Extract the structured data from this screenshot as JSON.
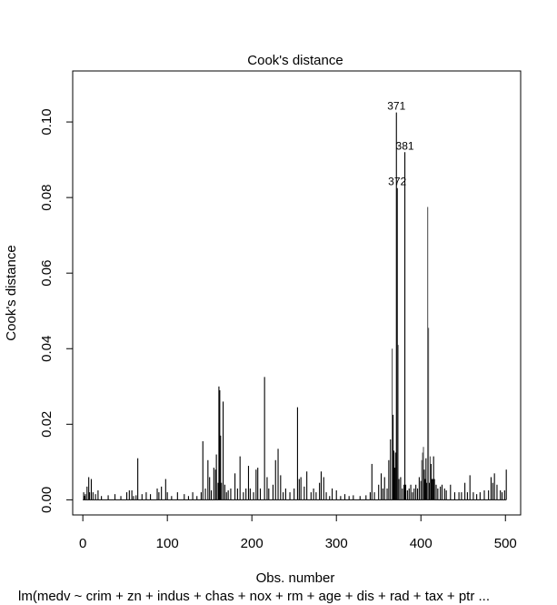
{
  "chart_data": {
    "type": "bar",
    "title": "Cook's distance",
    "xlabel": "Obs. number",
    "ylabel": "Cook's distance",
    "caption": "lm(medv ~ crim + zn + indus + chas + nox + rm + age + dis + rad + tax + ptr ...",
    "xlim": [
      -12,
      518
    ],
    "ylim": [
      -0.004,
      0.1135
    ],
    "xticks": [
      0,
      100,
      200,
      300,
      400,
      500
    ],
    "xtick_labels": [
      "0",
      "100",
      "200",
      "300",
      "400",
      "500"
    ],
    "yticks": [
      0.0,
      0.02,
      0.04,
      0.06,
      0.08,
      0.1
    ],
    "ytick_labels": [
      "0.00",
      "0.02",
      "0.04",
      "0.06",
      "0.08",
      "0.10"
    ],
    "grid": false,
    "bar_color": "#000000",
    "highlight_color": "#555555",
    "baseline": 0.0005,
    "spikes": [
      [
        1,
        0.002
      ],
      [
        2,
        0.001
      ],
      [
        3,
        0.0015
      ],
      [
        5,
        0.0035
      ],
      [
        7,
        0.006
      ],
      [
        8,
        0.002
      ],
      [
        10,
        0.0055
      ],
      [
        12,
        0.002
      ],
      [
        15,
        0.0015
      ],
      [
        18,
        0.0025
      ],
      [
        22,
        0.001
      ],
      [
        30,
        0.0012
      ],
      [
        38,
        0.0015
      ],
      [
        45,
        0.001
      ],
      [
        52,
        0.002
      ],
      [
        55,
        0.0025
      ],
      [
        58,
        0.0025
      ],
      [
        60,
        0.001
      ],
      [
        63,
        0.0012
      ],
      [
        65,
        0.011
      ],
      [
        70,
        0.0015
      ],
      [
        75,
        0.002
      ],
      [
        80,
        0.0015
      ],
      [
        88,
        0.003
      ],
      [
        90,
        0.002
      ],
      [
        93,
        0.0035
      ],
      [
        98,
        0.0055
      ],
      [
        100,
        0.002
      ],
      [
        105,
        0.001
      ],
      [
        112,
        0.002
      ],
      [
        120,
        0.0015
      ],
      [
        125,
        0.001
      ],
      [
        130,
        0.002
      ],
      [
        135,
        0.001
      ],
      [
        140,
        0.002
      ],
      [
        142,
        0.0155
      ],
      [
        145,
        0.003
      ],
      [
        148,
        0.0105
      ],
      [
        150,
        0.006
      ],
      [
        152,
        0.0025
      ],
      [
        155,
        0.0085
      ],
      [
        157,
        0.008
      ],
      [
        158,
        0.012
      ],
      [
        160,
        0.0045
      ],
      [
        161,
        0.03
      ],
      [
        162,
        0.029
      ],
      [
        163,
        0.017
      ],
      [
        164,
        0.0045
      ],
      [
        166,
        0.026
      ],
      [
        168,
        0.004
      ],
      [
        170,
        0.002
      ],
      [
        172,
        0.0025
      ],
      [
        175,
        0.003
      ],
      [
        180,
        0.007
      ],
      [
        183,
        0.003
      ],
      [
        186,
        0.0115
      ],
      [
        190,
        0.002
      ],
      [
        193,
        0.003
      ],
      [
        196,
        0.009
      ],
      [
        198,
        0.003
      ],
      [
        202,
        0.002
      ],
      [
        205,
        0.008
      ],
      [
        207,
        0.0085
      ],
      [
        210,
        0.003
      ],
      [
        215,
        0.0325
      ],
      [
        218,
        0.006
      ],
      [
        220,
        0.003
      ],
      [
        225,
        0.004
      ],
      [
        228,
        0.0105
      ],
      [
        231,
        0.0135
      ],
      [
        234,
        0.0065
      ],
      [
        237,
        0.002
      ],
      [
        240,
        0.003
      ],
      [
        245,
        0.002
      ],
      [
        250,
        0.003
      ],
      [
        254,
        0.0245
      ],
      [
        256,
        0.0055
      ],
      [
        258,
        0.006
      ],
      [
        262,
        0.0035
      ],
      [
        265,
        0.0075
      ],
      [
        270,
        0.002
      ],
      [
        273,
        0.003
      ],
      [
        276,
        0.002
      ],
      [
        280,
        0.0045
      ],
      [
        282,
        0.0075
      ],
      [
        285,
        0.006
      ],
      [
        288,
        0.002
      ],
      [
        292,
        0.001
      ],
      [
        295,
        0.003
      ],
      [
        300,
        0.0025
      ],
      [
        305,
        0.001
      ],
      [
        310,
        0.0015
      ],
      [
        315,
        0.001
      ],
      [
        320,
        0.0012
      ],
      [
        328,
        0.001
      ],
      [
        335,
        0.0012
      ],
      [
        340,
        0.002
      ],
      [
        342,
        0.0095
      ],
      [
        345,
        0.002
      ],
      [
        350,
        0.004
      ],
      [
        353,
        0.007
      ],
      [
        355,
        0.003
      ],
      [
        357,
        0.006
      ],
      [
        360,
        0.003
      ],
      [
        362,
        0.0105
      ],
      [
        364,
        0.016
      ],
      [
        366,
        0.04
      ],
      [
        367,
        0.0225
      ],
      [
        368,
        0.013
      ],
      [
        369,
        0.0085
      ],
      [
        370,
        0.0125
      ],
      [
        371,
        0.1025
      ],
      [
        372,
        0.0825
      ],
      [
        373,
        0.041
      ],
      [
        374,
        0.0055
      ],
      [
        376,
        0.006
      ],
      [
        378,
        0.003
      ],
      [
        380,
        0.004
      ],
      [
        381,
        0.092
      ],
      [
        382,
        0.004
      ],
      [
        384,
        0.0025
      ],
      [
        386,
        0.003
      ],
      [
        388,
        0.004
      ],
      [
        390,
        0.002
      ],
      [
        392,
        0.003
      ],
      [
        394,
        0.004
      ],
      [
        396,
        0.003
      ],
      [
        398,
        0.006
      ],
      [
        400,
        0.005
      ],
      [
        401,
        0.0105
      ],
      [
        402,
        0.0125
      ],
      [
        403,
        0.014
      ],
      [
        404,
        0.008
      ],
      [
        405,
        0.0055
      ],
      [
        406,
        0.011
      ],
      [
        407,
        0.0045
      ],
      [
        408,
        0.0775
      ],
      [
        409,
        0.0455
      ],
      [
        410,
        0.0045
      ],
      [
        411,
        0.0115
      ],
      [
        412,
        0.0095
      ],
      [
        413,
        0.0055
      ],
      [
        414,
        0.0055
      ],
      [
        415,
        0.0115
      ],
      [
        416,
        0.0055
      ],
      [
        418,
        0.004
      ],
      [
        420,
        0.003
      ],
      [
        423,
        0.0035
      ],
      [
        425,
        0.004
      ],
      [
        428,
        0.003
      ],
      [
        430,
        0.0025
      ],
      [
        435,
        0.004
      ],
      [
        440,
        0.002
      ],
      [
        445,
        0.002
      ],
      [
        448,
        0.002
      ],
      [
        452,
        0.0045
      ],
      [
        455,
        0.002
      ],
      [
        458,
        0.0065
      ],
      [
        462,
        0.002
      ],
      [
        466,
        0.0015
      ],
      [
        470,
        0.002
      ],
      [
        475,
        0.0025
      ],
      [
        480,
        0.0025
      ],
      [
        483,
        0.006
      ],
      [
        485,
        0.0045
      ],
      [
        487,
        0.007
      ],
      [
        490,
        0.004
      ],
      [
        494,
        0.0025
      ],
      [
        496,
        0.002
      ],
      [
        499,
        0.0025
      ],
      [
        501,
        0.008
      ]
    ],
    "highlighted": [
      366,
      373,
      401,
      402,
      403,
      408,
      409,
      411
    ],
    "annotations": [
      {
        "label": "371",
        "x": 371,
        "y": 0.1025
      },
      {
        "label": "381",
        "x": 381,
        "y": 0.092
      },
      {
        "label": "372",
        "x": 372,
        "y": 0.0825
      }
    ]
  }
}
